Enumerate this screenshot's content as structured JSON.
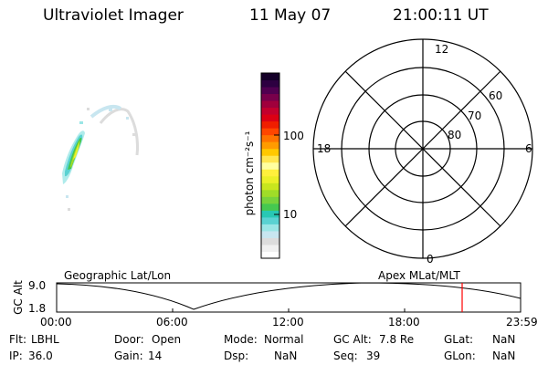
{
  "header": {
    "instrument": "Ultraviolet Imager",
    "date": "11 May 07",
    "time": "21:00:11 UT"
  },
  "colorbar": {
    "unit_label": "photon cm⁻²s⁻¹",
    "ticks": [
      "100",
      "10"
    ],
    "colors": [
      "#ffffff",
      "#f0f0f0",
      "#dcdcdc",
      "#c8e6f0",
      "#9be6e6",
      "#5ad2d2",
      "#28c8b4",
      "#46c850",
      "#78d23c",
      "#a0dc28",
      "#c8e61e",
      "#ebf028",
      "#fff03c",
      "#ffffa0",
      "#ffe650",
      "#ffc800",
      "#ff9b00",
      "#ff7300",
      "#ff4600",
      "#f01e00",
      "#dc0014",
      "#c3002d",
      "#a0003c",
      "#78004b",
      "#500050",
      "#2d0041",
      "#140028"
    ]
  },
  "polar": {
    "mlt_labels": {
      "top": "12",
      "left": "18",
      "right": "6",
      "bottom": "0"
    },
    "lat_labels": [
      "60",
      "70",
      "80"
    ]
  },
  "timeline": {
    "left_label": "Geographic Lat/Lon",
    "right_label": "Apex MLat/MLT",
    "axis_label": "GC Alt",
    "y_max": "9.0",
    "y_min": "1.8",
    "x_ticks": [
      "00:00",
      "06:00",
      "12:00",
      "18:00",
      "23:59"
    ]
  },
  "info": {
    "row1": [
      {
        "key": "Flt:",
        "value": "LBHL"
      },
      {
        "key": "Door:",
        "value": "Open"
      },
      {
        "key": "Mode:",
        "value": "Normal"
      },
      {
        "key": "GC Alt:",
        "value": "7.8 Re"
      },
      {
        "key": "GLat:",
        "value": "NaN"
      }
    ],
    "row2": [
      {
        "key": "IP:",
        "value": "36.0"
      },
      {
        "key": "Gain:",
        "value": "14"
      },
      {
        "key": "Dsp:",
        "value": "NaN"
      },
      {
        "key": "Seq:",
        "value": "39"
      },
      {
        "key": "GLon:",
        "value": "NaN"
      }
    ]
  },
  "colors": {
    "marker": "#ff0000",
    "line": "#000000"
  }
}
